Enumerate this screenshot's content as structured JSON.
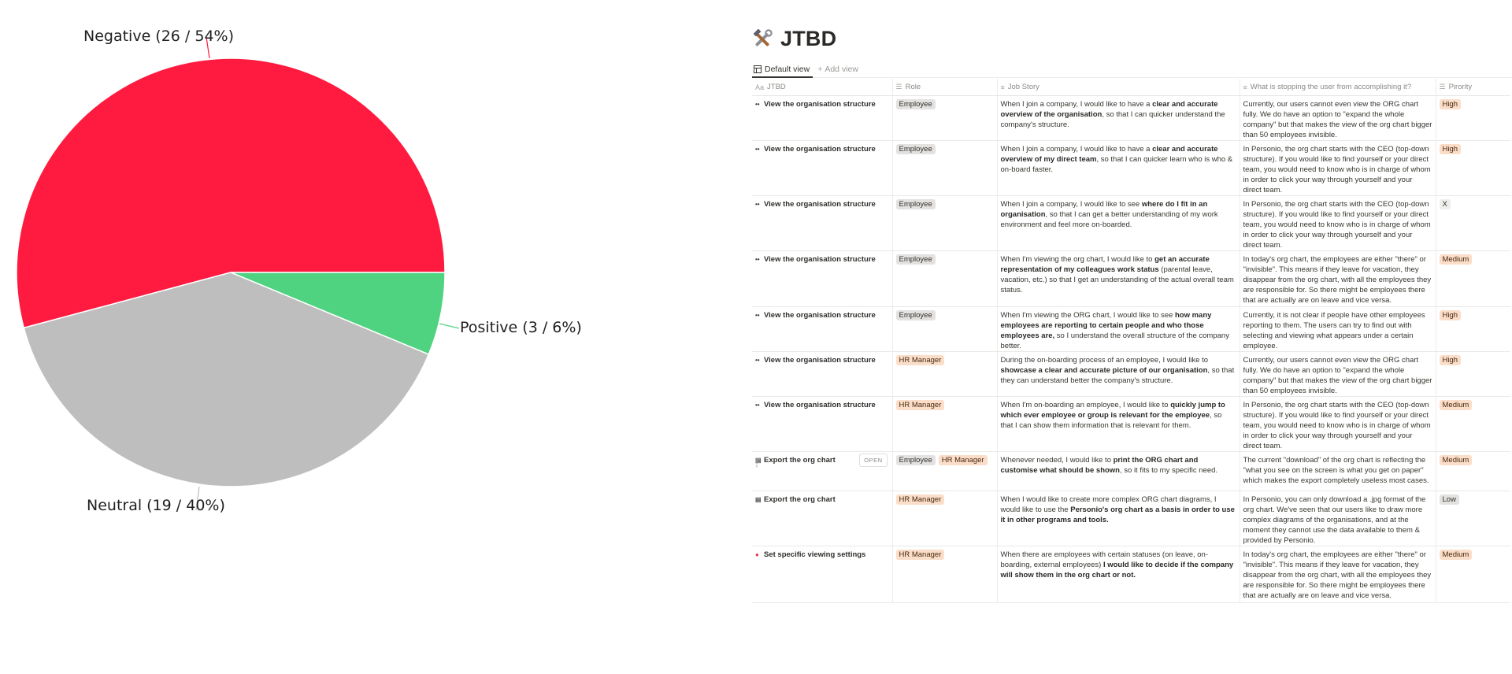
{
  "chart_data": {
    "type": "pie",
    "slices": [
      {
        "label": "Negative (26 / 54%)",
        "value": 26,
        "percent": 54,
        "color": "#ff1a40"
      },
      {
        "label": "Positive (3 / 6%)",
        "value": 3,
        "percent": 6,
        "color": "#50d381"
      },
      {
        "label": "Neutral (19 / 40%)",
        "value": 19,
        "percent": 40,
        "color": "#bebebe"
      }
    ]
  },
  "page": {
    "title_icon": "hammer-and-wrench-icon",
    "title": "JTBD",
    "views": {
      "default_label": "Default view",
      "add_label": "Add view"
    },
    "columns": [
      "JTBD",
      "Role",
      "Job Story",
      "What is stopping the user from accomplishing it?",
      "Pirority"
    ],
    "open_label": "OPEN",
    "rows": [
      {
        "icon": "eyes-icon",
        "jtbd": "View the organisation structure",
        "roles": [
          "Employee"
        ],
        "story": [
          {
            "t": "When I join a company, I would like to have a "
          },
          {
            "t": "clear and accurate overview of the organisation",
            "b": true
          },
          {
            "t": ", so that I can quicker understand the company's structure."
          }
        ],
        "blocker": "Currently, our users cannot even view the ORG chart fully. We do have an option to \"expand the whole company\" but that makes the view of the org chart bigger than 50 employees invisible.",
        "priority": "High"
      },
      {
        "icon": "eyes-icon",
        "jtbd": "View the organisation structure",
        "roles": [
          "Employee"
        ],
        "story": [
          {
            "t": "When I join a company, I would like to have a "
          },
          {
            "t": "clear and accurate overview of my direct team",
            "b": true
          },
          {
            "t": ", so that I can quicker learn who is who & on-board faster."
          }
        ],
        "blocker": "In Personio, the org chart starts with the CEO (top-down structure). If you would like to find yourself or your direct team, you would need to know who is in charge of whom in order to click your way through yourself and your direct team.",
        "priority": "High"
      },
      {
        "icon": "eyes-icon",
        "jtbd": "View the organisation structure",
        "roles": [
          "Employee"
        ],
        "story": [
          {
            "t": "When I join a company, I would like to see "
          },
          {
            "t": "where do I fit in an organisation",
            "b": true
          },
          {
            "t": ", so that I can get a better understanding of my work environment and feel more on-boarded."
          }
        ],
        "blocker": "In Personio, the org chart starts with the CEO (top-down structure). If you would like to find yourself or your direct team, you would need to know who is in charge of whom in order to click your way through yourself and your direct team.",
        "priority": "X"
      },
      {
        "icon": "eyes-icon",
        "jtbd": "View the organisation structure",
        "roles": [
          "Employee"
        ],
        "story": [
          {
            "t": "When I'm viewing the org chart, I would like to "
          },
          {
            "t": "get an accurate representation of my colleagues work status",
            "b": true
          },
          {
            "t": " (parental leave, vacation, etc.) so that I get an understanding of the actual overall team status."
          }
        ],
        "blocker": "In today's org chart, the employees are either \"there\" or \"invisible\". This means if they leave for vacation, they disappear from the org chart, with all the employees they are responsible for. So there might be employees there that are actually are on leave and vice versa.",
        "priority": "Medium"
      },
      {
        "icon": "eyes-icon",
        "jtbd": "View the organisation structure",
        "roles": [
          "Employee"
        ],
        "story": [
          {
            "t": "When I'm viewing the ORG chart, I would like to see "
          },
          {
            "t": "how many employees are reporting to certain people and who those employees are,",
            "b": true
          },
          {
            "t": " so I understand the overall structure of the company better."
          }
        ],
        "blocker": "Currently, it is not clear if people have other employees reporting to them. The users can try to find out with selecting and viewing what appears under a certain employee.",
        "priority": "High"
      },
      {
        "icon": "eyes-icon",
        "jtbd": "View the organisation structure",
        "roles": [
          "HR Manager"
        ],
        "story": [
          {
            "t": "During the on-boarding process of an employee, I would like to "
          },
          {
            "t": "showcase a clear and accurate picture of our organisation",
            "b": true
          },
          {
            "t": ", so that they can understand better the company's structure."
          }
        ],
        "blocker": "Currently, our users cannot even view the ORG chart fully. We do have an option to \"expand the whole company\" but that makes the view of the org chart bigger than 50 employees invisible.",
        "priority": "High"
      },
      {
        "icon": "eyes-icon",
        "jtbd": "View the organisation structure",
        "roles": [
          "HR Manager"
        ],
        "story": [
          {
            "t": "When I'm on-boarding an employee, I would like to "
          },
          {
            "t": "quickly jump to which ever employee or group is relevant for the employee",
            "b": true
          },
          {
            "t": ", so that I can show them information that is relevant for them."
          }
        ],
        "blocker": "In Personio, the org chart starts with the CEO (top-down structure). If you would like to find yourself or your direct team, you would need to know who is in charge of whom in order to click your way through yourself and your direct team.",
        "priority": "Medium"
      },
      {
        "icon": "print-icon",
        "jtbd": "Export the org chart",
        "roles": [
          "Employee",
          "HR Manager"
        ],
        "story": [
          {
            "t": "Whenever needed, I would like to "
          },
          {
            "t": "print the ORG chart and customise what should be shown",
            "b": true
          },
          {
            "t": ", so it fits to my specific need."
          }
        ],
        "blocker": "The current \"download\" of the org chart is reflecting the \"what you see on the screen is what you get on paper\" which makes the export completely useless most cases.",
        "priority": "Medium",
        "hovered": true
      },
      {
        "icon": "print-icon",
        "jtbd": "Export the org chart",
        "roles": [
          "HR Manager"
        ],
        "story": [
          {
            "t": "When I would like to create more complex ORG chart diagrams, I would like to use the "
          },
          {
            "t": "Personio's org chart as a basis in order to use it in other programs and tools.",
            "b": true
          }
        ],
        "blocker": "In Personio, you can only download a .jpg format of the org chart. We've seen that our users like to draw more complex diagrams of the organisations, and at the moment they cannot use the data available to them  & provided by Personio.",
        "priority": "Low"
      },
      {
        "icon": "eye-slash-icon",
        "jtbd": "Set specific viewing settings",
        "roles": [
          "HR Manager"
        ],
        "story": [
          {
            "t": "When there are employees with certain statuses (on leave, on-boarding, external employees) "
          },
          {
            "t": "I would like to decide if the company will show them in the org chart or not.",
            "b": true
          }
        ],
        "blocker": "In today's org chart, the employees are either \"there\" or \"invisible\". This means if they leave for vacation, they disappear from the org chart, with all the employees they are responsible for. So there might be employees there that are actually are on leave and vice versa.",
        "priority": "Medium"
      }
    ]
  }
}
